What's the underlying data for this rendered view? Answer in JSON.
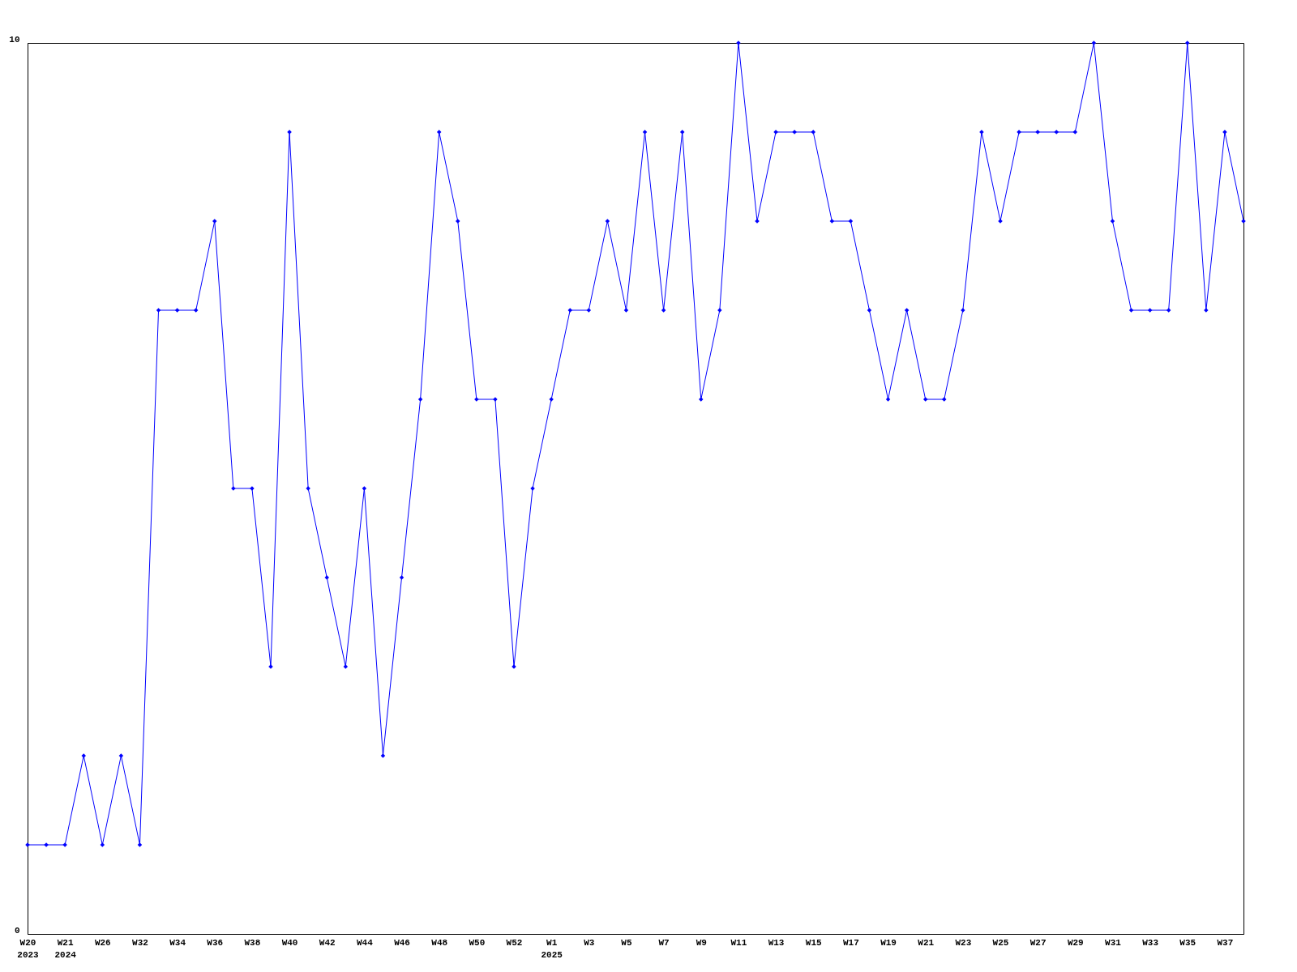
{
  "chart_data": {
    "type": "line",
    "categories": [
      "W20\n2023",
      null,
      "W21\n2024",
      null,
      "W26",
      null,
      "W32",
      null,
      "W34",
      null,
      "W36",
      null,
      "W38",
      null,
      "W40",
      null,
      "W42",
      null,
      "W44",
      null,
      "W46",
      null,
      "W48",
      null,
      "W50",
      null,
      "W52",
      null,
      "W1\n2025",
      null,
      "W3",
      null,
      "W5",
      null,
      "W7",
      null,
      "W9",
      null,
      "W11",
      null,
      "W13",
      null,
      "W15",
      null,
      "W17",
      null,
      "W19",
      null,
      "W21",
      null,
      "W23",
      null,
      "W25",
      null,
      "W27",
      null,
      "W29",
      null,
      "W31",
      null,
      "W33",
      null,
      "W35",
      null,
      "W37",
      null
    ],
    "series": [
      {
        "color": "#0000ff",
        "values": [
          1,
          1,
          1,
          2,
          1,
          2,
          1,
          7,
          7,
          7,
          8,
          5,
          5,
          3,
          9,
          5,
          4,
          3,
          5,
          2,
          4,
          6,
          9,
          8,
          6,
          6,
          3,
          5,
          6,
          7,
          7,
          8,
          7,
          9,
          7,
          9,
          6,
          7,
          10,
          8,
          9,
          9,
          9,
          8,
          8,
          7,
          6,
          7,
          6,
          6,
          7,
          9,
          8,
          9,
          9,
          9,
          9,
          10,
          8,
          7,
          7,
          7,
          10,
          7,
          9,
          8
        ]
      }
    ],
    "ylim": [
      0,
      10
    ],
    "yticks": [
      0,
      10
    ],
    "grid": false,
    "marker": "diamond",
    "line_style": "solid"
  }
}
